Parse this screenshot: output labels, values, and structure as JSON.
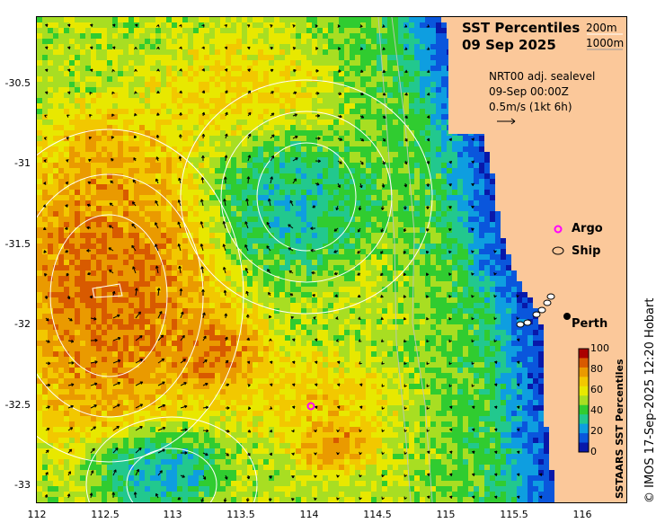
{
  "title": {
    "line1": "SST Percentiles",
    "line2": "09 Sep 2025"
  },
  "depth_legend": {
    "contour_200": "200m",
    "contour_1000": "1000m"
  },
  "sealevel_info": {
    "line1": "NRT00 adj. sealevel",
    "line2": "09-Sep 00:00Z",
    "line3": "0.5m/s (1kt 6h)"
  },
  "legend": {
    "argo": "Argo",
    "ship": "Ship"
  },
  "place": {
    "perth": "Perth"
  },
  "colorbar": {
    "title": "SSTAARS SST Percentiles",
    "ticks": [
      "100",
      "80",
      "60",
      "40",
      "20",
      "0"
    ],
    "colors": [
      "#ab0000",
      "#d85a00",
      "#ea9a00",
      "#f2c800",
      "#e8e800",
      "#a8de22",
      "#30cc30",
      "#22c88e",
      "#0e9ee0",
      "#0a56dc",
      "#0818aa"
    ]
  },
  "axes": {
    "x_ticks": [
      "112",
      "112.5",
      "113",
      "113.5",
      "114",
      "114.5",
      "115",
      "115.5",
      "116"
    ],
    "y_ticks": [
      "-30.5",
      "-31",
      "-31.5",
      "-32",
      "-32.5",
      "-33"
    ]
  },
  "credit": "© IMOS 17-Sep-2025 12:20 Hobart",
  "colors": {
    "land": "#fbc89a",
    "contour": "#ffffff",
    "argo_marker": "#ff00ff"
  }
}
